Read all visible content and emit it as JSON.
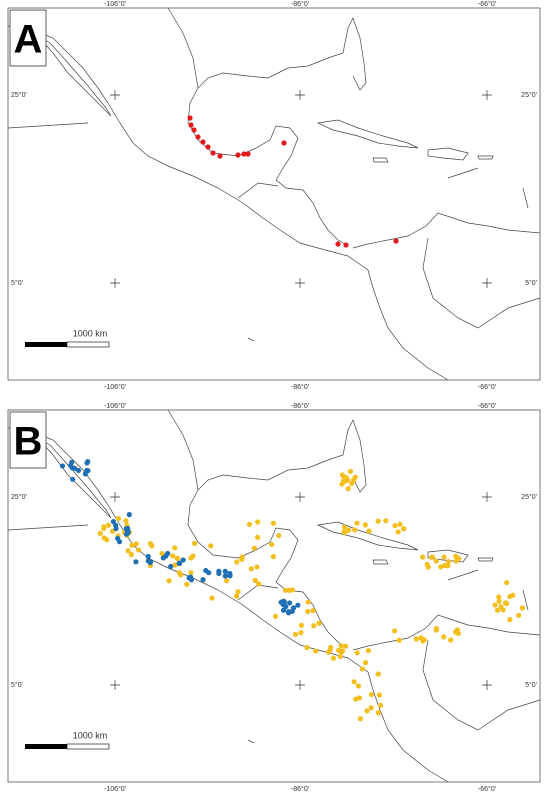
{
  "panels": [
    {
      "label": "A",
      "top_labels": [
        "-106°0'",
        "-86°0'",
        "-66°0'"
      ],
      "bottom_labels": [
        "-106°0'",
        "-86°0'",
        "-66°0'"
      ],
      "left_labels": [
        "25°0'",
        "5°0'"
      ],
      "right_labels": [
        "25°0'",
        "5°0'"
      ],
      "scale_label": "1000 km"
    },
    {
      "label": "B",
      "top_labels": [
        "-106°0'",
        "-86°0'",
        "-66°0'"
      ],
      "bottom_labels": [
        "-106°0'",
        "-86°0'",
        "-66°0'"
      ],
      "left_labels": [
        "25°0'",
        "5°0'"
      ],
      "right_labels": [
        "25°0'",
        "5°0'"
      ],
      "scale_label": "1000 km"
    }
  ]
}
